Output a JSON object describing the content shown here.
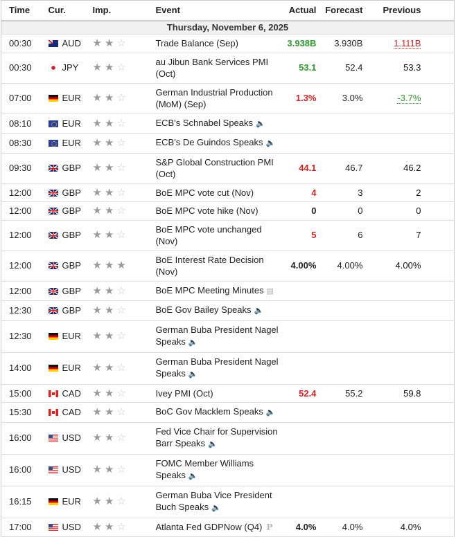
{
  "headers": {
    "time": "Time",
    "cur": "Cur.",
    "imp": "Imp.",
    "event": "Event",
    "actual": "Actual",
    "forecast": "Forecast",
    "previous": "Previous"
  },
  "date": "Thursday, November 6, 2025",
  "colors": {
    "better": "#2e9b2e",
    "worse": "#d32323"
  },
  "rows": [
    {
      "time": "00:30",
      "cur": "AUD",
      "flag": "AUD",
      "stars": 2,
      "event": "Trade Balance (Sep)",
      "icon": "",
      "actual": "3.938B",
      "actual_color": "green",
      "forecast": "3.930B",
      "previous": "1.111B",
      "previous_color": "red",
      "previous_revised": true
    },
    {
      "time": "00:30",
      "cur": "JPY",
      "flag": "JPY",
      "stars": 2,
      "event": "au Jibun Bank Services PMI (Oct)",
      "icon": "",
      "actual": "53.1",
      "actual_color": "green",
      "forecast": "52.4",
      "previous": "53.3"
    },
    {
      "time": "07:00",
      "cur": "EUR",
      "flag": "EUR",
      "stars": 2,
      "event": "German Industrial Production (MoM) (Sep)",
      "icon": "",
      "actual": "1.3%",
      "actual_color": "red",
      "forecast": "3.0%",
      "previous": "-3.7%",
      "previous_color": "green",
      "previous_revised": true
    },
    {
      "time": "08:10",
      "cur": "EUR",
      "flag": "EZ",
      "stars": 2,
      "event": "ECB's Schnabel Speaks",
      "icon": "speaker",
      "actual": "",
      "forecast": "",
      "previous": ""
    },
    {
      "time": "08:30",
      "cur": "EUR",
      "flag": "EZ",
      "stars": 2,
      "event": "ECB's De Guindos Speaks",
      "icon": "speaker",
      "actual": "",
      "forecast": "",
      "previous": ""
    },
    {
      "time": "09:30",
      "cur": "GBP",
      "flag": "GBP",
      "stars": 2,
      "event": "S&P Global Construction PMI (Oct)",
      "icon": "",
      "actual": "44.1",
      "actual_color": "red",
      "forecast": "46.7",
      "previous": "46.2"
    },
    {
      "time": "12:00",
      "cur": "GBP",
      "flag": "GBP",
      "stars": 2,
      "event": "BoE MPC vote cut (Nov)",
      "icon": "",
      "actual": "4",
      "actual_color": "red",
      "forecast": "3",
      "previous": "2"
    },
    {
      "time": "12:00",
      "cur": "GBP",
      "flag": "GBP",
      "stars": 2,
      "event": "BoE MPC vote hike (Nov)",
      "icon": "",
      "actual": "0",
      "actual_color": "",
      "forecast": "0",
      "previous": "0"
    },
    {
      "time": "12:00",
      "cur": "GBP",
      "flag": "GBP",
      "stars": 2,
      "event": "BoE MPC vote unchanged (Nov)",
      "icon": "",
      "actual": "5",
      "actual_color": "red",
      "forecast": "6",
      "previous": "7"
    },
    {
      "time": "12:00",
      "cur": "GBP",
      "flag": "GBP",
      "stars": 3,
      "event": "BoE Interest Rate Decision (Nov)",
      "icon": "",
      "actual": "4.00%",
      "actual_color": "",
      "forecast": "4.00%",
      "previous": "4.00%"
    },
    {
      "time": "12:00",
      "cur": "GBP",
      "flag": "GBP",
      "stars": 2,
      "event": "BoE MPC Meeting Minutes",
      "icon": "document",
      "actual": "",
      "forecast": "",
      "previous": ""
    },
    {
      "time": "12:30",
      "cur": "GBP",
      "flag": "GBP",
      "stars": 2,
      "event": "BoE Gov Bailey Speaks",
      "icon": "speaker",
      "actual": "",
      "forecast": "",
      "previous": ""
    },
    {
      "time": "12:30",
      "cur": "EUR",
      "flag": "EUR",
      "stars": 2,
      "event": "German Buba President Nagel Speaks",
      "icon": "speaker",
      "actual": "",
      "forecast": "",
      "previous": ""
    },
    {
      "time": "14:00",
      "cur": "EUR",
      "flag": "EUR",
      "stars": 2,
      "event": "German Buba President Nagel Speaks",
      "icon": "speaker",
      "actual": "",
      "forecast": "",
      "previous": ""
    },
    {
      "time": "15:00",
      "cur": "CAD",
      "flag": "CAD",
      "stars": 2,
      "event": "Ivey PMI (Oct)",
      "icon": "",
      "actual": "52.4",
      "actual_color": "red",
      "forecast": "55.2",
      "previous": "59.8"
    },
    {
      "time": "15:30",
      "cur": "CAD",
      "flag": "CAD",
      "stars": 2,
      "event": "BoC Gov Macklem Speaks",
      "icon": "speaker",
      "actual": "",
      "forecast": "",
      "previous": ""
    },
    {
      "time": "16:00",
      "cur": "USD",
      "flag": "USD",
      "stars": 2,
      "event": "Fed Vice Chair for Supervision Barr Speaks",
      "icon": "speaker",
      "actual": "",
      "forecast": "",
      "previous": ""
    },
    {
      "time": "16:00",
      "cur": "USD",
      "flag": "USD",
      "stars": 2,
      "event": "FOMC Member Williams Speaks",
      "icon": "speaker",
      "actual": "",
      "forecast": "",
      "previous": ""
    },
    {
      "time": "16:15",
      "cur": "EUR",
      "flag": "EUR",
      "stars": 2,
      "event": "German Buba Vice President Buch Speaks",
      "icon": "speaker",
      "actual": "",
      "forecast": "",
      "previous": ""
    },
    {
      "time": "17:00",
      "cur": "USD",
      "flag": "USD",
      "stars": 2,
      "event": "Atlanta Fed GDPNow (Q4)",
      "icon": "preliminary",
      "icon_label": "P",
      "actual": "4.0%",
      "actual_color": "",
      "forecast": "4.0%",
      "previous": "4.0%",
      "previous_weight": "normal"
    }
  ]
}
